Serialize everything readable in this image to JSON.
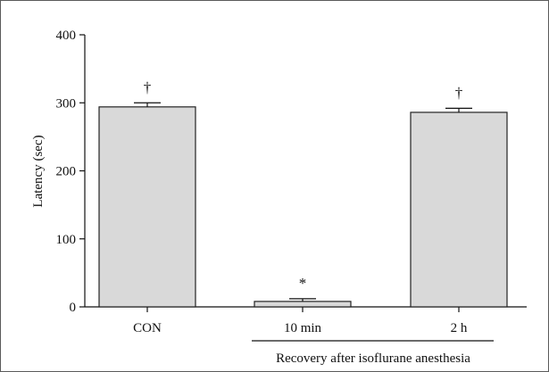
{
  "chart_data": {
    "type": "bar",
    "categories": [
      "CON",
      "10 min",
      "2 h"
    ],
    "values": [
      294,
      8,
      286
    ],
    "errors": [
      6,
      4,
      6
    ],
    "annotations": [
      "†",
      "*",
      "†"
    ],
    "title": "",
    "xlabel": "",
    "ylabel": "Latency (sec)",
    "ylim": [
      0,
      400
    ],
    "yticks": [
      0,
      100,
      200,
      300,
      400
    ],
    "group_label": "Recovery after isoflurane anesthesia",
    "grid": false,
    "bar_color": "#d9d9d9",
    "bar_edge_color": "#222222"
  }
}
